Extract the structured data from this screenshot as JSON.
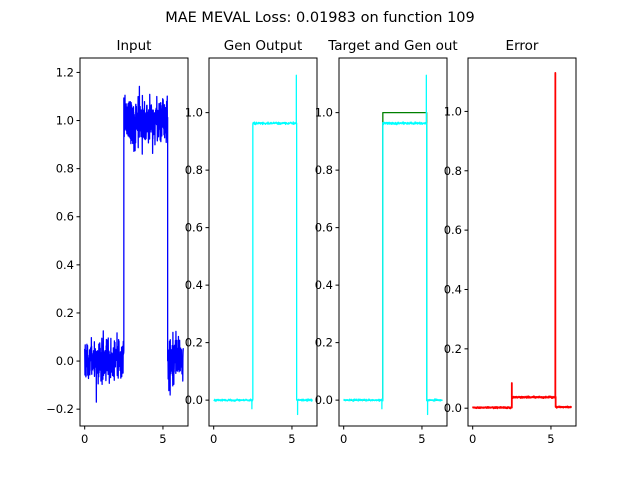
{
  "figure_title": "MAE MEVAL Loss: 0.01983 on function 109",
  "colors": {
    "input": "#0000ff",
    "gen_output": "#00ffff",
    "target": "#008000",
    "error": "#ff0000"
  },
  "chart_data": [
    {
      "type": "line",
      "title": "Input",
      "xlim": [
        -0.3,
        6.6
      ],
      "ylim": [
        -0.27,
        1.26
      ],
      "x_ticks": [
        "0",
        "5"
      ],
      "x_tick_values": [
        0,
        5
      ],
      "y_ticks": [
        "−0.2",
        "0.0",
        "0.2",
        "0.4",
        "0.6",
        "0.8",
        "1.0",
        "1.2"
      ],
      "y_tick_values": [
        -0.2,
        0.0,
        0.2,
        0.4,
        0.6,
        0.8,
        1.0,
        1.2
      ],
      "series": [
        {
          "color_key": "input",
          "style": "noisy-step",
          "segments": [
            {
              "x_start": 0.0,
              "x_end": 2.5,
              "level": 0.0,
              "noise": 0.12
            },
            {
              "x_start": 2.5,
              "x_end": 5.3,
              "level": 1.0,
              "noise": 0.13
            },
            {
              "x_start": 5.3,
              "x_end": 6.3,
              "level": 0.0,
              "noise": 0.12
            }
          ]
        }
      ]
    },
    {
      "type": "line",
      "title": "Gen Output",
      "xlim": [
        -0.3,
        6.6
      ],
      "ylim": [
        -0.09,
        1.19
      ],
      "x_ticks": [
        "0",
        "5"
      ],
      "x_tick_values": [
        0,
        5
      ],
      "y_ticks": [
        "0.0",
        "0.2",
        "0.4",
        "0.6",
        "0.8",
        "1.0"
      ],
      "y_tick_values": [
        0.0,
        0.2,
        0.4,
        0.6,
        0.8,
        1.0
      ],
      "series": [
        {
          "color_key": "gen_output",
          "style": "smooth-step",
          "segments": [
            {
              "x_start": 0.0,
              "x_end": 2.5,
              "level": 0.0,
              "noise": 0.005
            },
            {
              "x_start": 2.5,
              "x_end": 5.3,
              "level": 0.963,
              "noise": 0.006
            },
            {
              "x_start": 5.3,
              "x_end": 6.3,
              "level": 0.0,
              "noise": 0.005
            }
          ],
          "spikes": [
            {
              "x": 2.44,
              "y": -0.03
            },
            {
              "x": 5.28,
              "y": 1.13
            },
            {
              "x": 5.36,
              "y": -0.05
            }
          ]
        }
      ]
    },
    {
      "type": "line",
      "title": "Target and Gen out",
      "xlim": [
        -0.3,
        6.6
      ],
      "ylim": [
        -0.09,
        1.19
      ],
      "x_ticks": [
        "0",
        "5"
      ],
      "x_tick_values": [
        0,
        5
      ],
      "y_ticks": [
        "0.0",
        "0.2",
        "0.4",
        "0.6",
        "0.8",
        "1.0"
      ],
      "y_tick_values": [
        0.0,
        0.2,
        0.4,
        0.6,
        0.8,
        1.0
      ],
      "series": [
        {
          "color_key": "target",
          "style": "step",
          "segments": [
            {
              "x_start": 0.0,
              "x_end": 2.5,
              "level": 0.0,
              "noise": 0
            },
            {
              "x_start": 2.5,
              "x_end": 5.3,
              "level": 1.0,
              "noise": 0
            },
            {
              "x_start": 5.3,
              "x_end": 6.3,
              "level": 0.0,
              "noise": 0
            }
          ]
        },
        {
          "color_key": "gen_output",
          "style": "smooth-step",
          "segments": [
            {
              "x_start": 0.0,
              "x_end": 2.5,
              "level": 0.0,
              "noise": 0.005
            },
            {
              "x_start": 2.5,
              "x_end": 5.3,
              "level": 0.963,
              "noise": 0.006
            },
            {
              "x_start": 5.3,
              "x_end": 6.3,
              "level": 0.0,
              "noise": 0.005
            }
          ],
          "spikes": [
            {
              "x": 2.44,
              "y": -0.03
            },
            {
              "x": 5.28,
              "y": 1.13
            },
            {
              "x": 5.36,
              "y": -0.05
            }
          ]
        }
      ]
    },
    {
      "type": "line",
      "title": "Error",
      "xlim": [
        -0.3,
        6.6
      ],
      "ylim": [
        -0.06,
        1.18
      ],
      "x_ticks": [
        "0",
        "5"
      ],
      "x_tick_values": [
        0,
        5
      ],
      "y_ticks": [
        "0.0",
        "0.2",
        "0.4",
        "0.6",
        "0.8",
        "1.0"
      ],
      "y_tick_values": [
        0.0,
        0.2,
        0.4,
        0.6,
        0.8,
        1.0
      ],
      "series": [
        {
          "color_key": "error",
          "style": "smooth-step",
          "segments": [
            {
              "x_start": 0.0,
              "x_end": 2.5,
              "level": 0.002,
              "noise": 0.003
            },
            {
              "x_start": 2.5,
              "x_end": 5.3,
              "level": 0.037,
              "noise": 0.004
            },
            {
              "x_start": 5.3,
              "x_end": 6.3,
              "level": 0.004,
              "noise": 0.003
            }
          ],
          "spikes": [
            {
              "x": 2.5,
              "y": 0.085
            },
            {
              "x": 5.28,
              "y": 1.13
            }
          ]
        }
      ]
    }
  ]
}
